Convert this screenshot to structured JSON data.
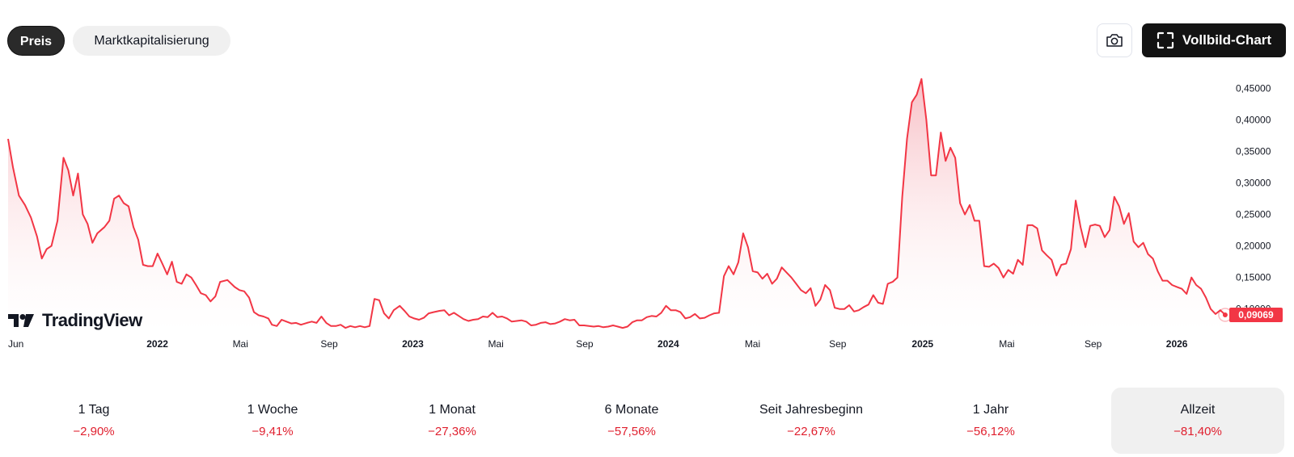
{
  "tabs": [
    {
      "label": "Preis",
      "active": true
    },
    {
      "label": "Marktkapitalisierung",
      "active": false
    }
  ],
  "toolbar": {
    "camera_icon": "camera-icon",
    "fullscreen_icon": "fullscreen-icon",
    "fullscreen_label": "Vollbild-Chart"
  },
  "branding": {
    "logo_text": "TradingView"
  },
  "colors": {
    "line": "#f23645",
    "area_top": "#f7b8bf",
    "area_bottom": "#ffffff",
    "accent_dark": "#131313",
    "negative": "#e0202f"
  },
  "chart_data": {
    "type": "area",
    "title": "",
    "xlabel": "",
    "ylabel": "",
    "ylim": [
      0.065,
      0.475
    ],
    "xlim": [
      0,
      1
    ],
    "y_ticks": [
      "0,45000",
      "0,40000",
      "0,35000",
      "0,30000",
      "0,25000",
      "0,20000",
      "0,15000",
      "0,10000"
    ],
    "y_tick_values": [
      0.45,
      0.4,
      0.35,
      0.3,
      0.25,
      0.2,
      0.15,
      0.1
    ],
    "x_ticks": [
      {
        "label": "Jun",
        "t": 0.0,
        "year": false
      },
      {
        "label": "2022",
        "t": 0.125,
        "year": true
      },
      {
        "label": "Mai",
        "t": 0.193,
        "year": false
      },
      {
        "label": "Sep",
        "t": 0.266,
        "year": false
      },
      {
        "label": "2023",
        "t": 0.337,
        "year": true
      },
      {
        "label": "Mai",
        "t": 0.405,
        "year": false
      },
      {
        "label": "Sep",
        "t": 0.478,
        "year": false
      },
      {
        "label": "2024",
        "t": 0.549,
        "year": true
      },
      {
        "label": "Mai",
        "t": 0.618,
        "year": false
      },
      {
        "label": "Sep",
        "t": 0.688,
        "year": false
      },
      {
        "label": "2025",
        "t": 0.76,
        "year": true
      },
      {
        "label": "Mai",
        "t": 0.829,
        "year": false
      },
      {
        "label": "Sep",
        "t": 0.9,
        "year": false
      },
      {
        "label": "2026",
        "t": 0.971,
        "year": true
      }
    ],
    "series": [
      {
        "name": "Preis",
        "points": [
          [
            0.0,
            0.37
          ],
          [
            0.004,
            0.325
          ],
          [
            0.009,
            0.28
          ],
          [
            0.014,
            0.265
          ],
          [
            0.019,
            0.245
          ],
          [
            0.024,
            0.215
          ],
          [
            0.028,
            0.18
          ],
          [
            0.032,
            0.195
          ],
          [
            0.036,
            0.2
          ],
          [
            0.041,
            0.24
          ],
          [
            0.046,
            0.34
          ],
          [
            0.05,
            0.32
          ],
          [
            0.054,
            0.28
          ],
          [
            0.058,
            0.315
          ],
          [
            0.062,
            0.25
          ],
          [
            0.066,
            0.235
          ],
          [
            0.07,
            0.205
          ],
          [
            0.074,
            0.22
          ],
          [
            0.08,
            0.23
          ],
          [
            0.084,
            0.24
          ],
          [
            0.088,
            0.275
          ],
          [
            0.092,
            0.28
          ],
          [
            0.096,
            0.268
          ],
          [
            0.1,
            0.263
          ],
          [
            0.104,
            0.23
          ],
          [
            0.108,
            0.21
          ],
          [
            0.112,
            0.17
          ],
          [
            0.116,
            0.168
          ],
          [
            0.12,
            0.168
          ],
          [
            0.124,
            0.188
          ],
          [
            0.128,
            0.172
          ],
          [
            0.132,
            0.155
          ],
          [
            0.136,
            0.175
          ],
          [
            0.14,
            0.143
          ],
          [
            0.144,
            0.14
          ],
          [
            0.148,
            0.155
          ],
          [
            0.152,
            0.15
          ],
          [
            0.156,
            0.138
          ],
          [
            0.16,
            0.125
          ],
          [
            0.164,
            0.122
          ],
          [
            0.168,
            0.112
          ],
          [
            0.172,
            0.12
          ],
          [
            0.176,
            0.143
          ],
          [
            0.182,
            0.146
          ],
          [
            0.188,
            0.135
          ],
          [
            0.192,
            0.13
          ],
          [
            0.196,
            0.128
          ],
          [
            0.2,
            0.118
          ],
          [
            0.204,
            0.095
          ],
          [
            0.208,
            0.09
          ],
          [
            0.212,
            0.088
          ],
          [
            0.216,
            0.085
          ],
          [
            0.219,
            0.075
          ],
          [
            0.223,
            0.073
          ],
          [
            0.227,
            0.083
          ],
          [
            0.231,
            0.08
          ],
          [
            0.235,
            0.077
          ],
          [
            0.239,
            0.078
          ],
          [
            0.243,
            0.075
          ],
          [
            0.248,
            0.078
          ],
          [
            0.252,
            0.08
          ],
          [
            0.256,
            0.078
          ],
          [
            0.26,
            0.088
          ],
          [
            0.264,
            0.078
          ],
          [
            0.268,
            0.073
          ],
          [
            0.272,
            0.073
          ],
          [
            0.276,
            0.075
          ],
          [
            0.28,
            0.07
          ],
          [
            0.284,
            0.073
          ],
          [
            0.288,
            0.071
          ],
          [
            0.292,
            0.073
          ],
          [
            0.296,
            0.071
          ],
          [
            0.3,
            0.073
          ],
          [
            0.304,
            0.116
          ],
          [
            0.308,
            0.114
          ],
          [
            0.312,
            0.093
          ],
          [
            0.316,
            0.085
          ],
          [
            0.32,
            0.098
          ],
          [
            0.325,
            0.105
          ],
          [
            0.329,
            0.097
          ],
          [
            0.333,
            0.088
          ],
          [
            0.337,
            0.085
          ],
          [
            0.341,
            0.083
          ],
          [
            0.345,
            0.086
          ],
          [
            0.349,
            0.093
          ],
          [
            0.353,
            0.095
          ],
          [
            0.358,
            0.097
          ],
          [
            0.362,
            0.098
          ],
          [
            0.366,
            0.09
          ],
          [
            0.37,
            0.094
          ],
          [
            0.374,
            0.089
          ],
          [
            0.378,
            0.084
          ],
          [
            0.382,
            0.081
          ],
          [
            0.386,
            0.083
          ],
          [
            0.39,
            0.084
          ],
          [
            0.394,
            0.088
          ],
          [
            0.398,
            0.087
          ],
          [
            0.402,
            0.094
          ],
          [
            0.406,
            0.087
          ],
          [
            0.41,
            0.088
          ],
          [
            0.414,
            0.085
          ],
          [
            0.418,
            0.08
          ],
          [
            0.422,
            0.081
          ],
          [
            0.426,
            0.082
          ],
          [
            0.43,
            0.08
          ],
          [
            0.434,
            0.074
          ],
          [
            0.438,
            0.075
          ],
          [
            0.442,
            0.078
          ],
          [
            0.446,
            0.079
          ],
          [
            0.45,
            0.076
          ],
          [
            0.454,
            0.077
          ],
          [
            0.458,
            0.08
          ],
          [
            0.462,
            0.084
          ],
          [
            0.466,
            0.082
          ],
          [
            0.47,
            0.083
          ],
          [
            0.474,
            0.074
          ],
          [
            0.478,
            0.074
          ],
          [
            0.482,
            0.073
          ],
          [
            0.486,
            0.072
          ],
          [
            0.49,
            0.073
          ],
          [
            0.494,
            0.071
          ],
          [
            0.498,
            0.072
          ],
          [
            0.502,
            0.074
          ],
          [
            0.506,
            0.072
          ],
          [
            0.51,
            0.07
          ],
          [
            0.514,
            0.072
          ],
          [
            0.518,
            0.079
          ],
          [
            0.522,
            0.082
          ],
          [
            0.526,
            0.082
          ],
          [
            0.53,
            0.087
          ],
          [
            0.534,
            0.089
          ],
          [
            0.538,
            0.088
          ],
          [
            0.542,
            0.094
          ],
          [
            0.546,
            0.105
          ],
          [
            0.55,
            0.098
          ],
          [
            0.554,
            0.098
          ],
          [
            0.558,
            0.095
          ],
          [
            0.562,
            0.085
          ],
          [
            0.566,
            0.087
          ],
          [
            0.57,
            0.092
          ],
          [
            0.574,
            0.085
          ],
          [
            0.578,
            0.086
          ],
          [
            0.582,
            0.09
          ],
          [
            0.586,
            0.093
          ],
          [
            0.59,
            0.094
          ],
          [
            0.594,
            0.152
          ],
          [
            0.598,
            0.168
          ],
          [
            0.602,
            0.155
          ],
          [
            0.606,
            0.174
          ],
          [
            0.61,
            0.22
          ],
          [
            0.614,
            0.198
          ],
          [
            0.618,
            0.16
          ],
          [
            0.622,
            0.158
          ],
          [
            0.626,
            0.148
          ],
          [
            0.63,
            0.156
          ],
          [
            0.634,
            0.14
          ],
          [
            0.638,
            0.148
          ],
          [
            0.642,
            0.166
          ],
          [
            0.646,
            0.158
          ],
          [
            0.65,
            0.15
          ],
          [
            0.654,
            0.14
          ],
          [
            0.658,
            0.13
          ],
          [
            0.662,
            0.125
          ],
          [
            0.666,
            0.133
          ],
          [
            0.67,
            0.105
          ],
          [
            0.674,
            0.115
          ],
          [
            0.678,
            0.138
          ],
          [
            0.682,
            0.13
          ],
          [
            0.686,
            0.102
          ],
          [
            0.69,
            0.1
          ],
          [
            0.694,
            0.1
          ],
          [
            0.698,
            0.106
          ],
          [
            0.702,
            0.096
          ],
          [
            0.706,
            0.098
          ],
          [
            0.71,
            0.103
          ],
          [
            0.714,
            0.107
          ],
          [
            0.718,
            0.122
          ],
          [
            0.722,
            0.11
          ],
          [
            0.726,
            0.108
          ],
          [
            0.73,
            0.14
          ],
          [
            0.734,
            0.143
          ],
          [
            0.738,
            0.15
          ],
          [
            0.742,
            0.278
          ],
          [
            0.746,
            0.37
          ],
          [
            0.75,
            0.428
          ],
          [
            0.754,
            0.44
          ],
          [
            0.758,
            0.465
          ],
          [
            0.762,
            0.4
          ],
          [
            0.766,
            0.312
          ],
          [
            0.77,
            0.312
          ],
          [
            0.774,
            0.38
          ],
          [
            0.778,
            0.335
          ],
          [
            0.782,
            0.356
          ],
          [
            0.786,
            0.34
          ],
          [
            0.79,
            0.268
          ],
          [
            0.794,
            0.25
          ],
          [
            0.798,
            0.265
          ],
          [
            0.802,
            0.24
          ],
          [
            0.806,
            0.24
          ],
          [
            0.81,
            0.168
          ],
          [
            0.814,
            0.167
          ],
          [
            0.818,
            0.172
          ],
          [
            0.822,
            0.165
          ],
          [
            0.826,
            0.15
          ],
          [
            0.83,
            0.162
          ],
          [
            0.834,
            0.156
          ],
          [
            0.838,
            0.178
          ],
          [
            0.842,
            0.17
          ],
          [
            0.846,
            0.233
          ],
          [
            0.85,
            0.233
          ],
          [
            0.854,
            0.228
          ],
          [
            0.858,
            0.193
          ],
          [
            0.862,
            0.185
          ],
          [
            0.866,
            0.178
          ],
          [
            0.87,
            0.153
          ],
          [
            0.874,
            0.17
          ],
          [
            0.878,
            0.172
          ],
          [
            0.882,
            0.195
          ],
          [
            0.886,
            0.272
          ],
          [
            0.89,
            0.23
          ],
          [
            0.894,
            0.198
          ],
          [
            0.898,
            0.232
          ],
          [
            0.902,
            0.234
          ],
          [
            0.906,
            0.232
          ],
          [
            0.91,
            0.214
          ],
          [
            0.914,
            0.225
          ],
          [
            0.918,
            0.278
          ],
          [
            0.922,
            0.263
          ],
          [
            0.926,
            0.235
          ],
          [
            0.93,
            0.252
          ],
          [
            0.934,
            0.207
          ],
          [
            0.938,
            0.198
          ],
          [
            0.942,
            0.205
          ],
          [
            0.946,
            0.187
          ],
          [
            0.95,
            0.18
          ],
          [
            0.954,
            0.16
          ],
          [
            0.958,
            0.145
          ],
          [
            0.962,
            0.145
          ],
          [
            0.966,
            0.138
          ],
          [
            0.97,
            0.135
          ],
          [
            0.974,
            0.132
          ],
          [
            0.978,
            0.124
          ],
          [
            0.982,
            0.15
          ],
          [
            0.986,
            0.138
          ],
          [
            0.99,
            0.132
          ],
          [
            0.994,
            0.118
          ],
          [
            0.998,
            0.1
          ],
          [
            1.002,
            0.092
          ],
          [
            1.006,
            0.098
          ],
          [
            1.01,
            0.0907
          ]
        ]
      }
    ],
    "last_value_label": "0,09069"
  },
  "stats": [
    {
      "label": "1 Tag",
      "value": "−2,90%",
      "active": false
    },
    {
      "label": "1 Woche",
      "value": "−9,41%",
      "active": false
    },
    {
      "label": "1 Monat",
      "value": "−27,36%",
      "active": false
    },
    {
      "label": "6 Monate",
      "value": "−57,56%",
      "active": false
    },
    {
      "label": "Seit Jahresbeginn",
      "value": "−22,67%",
      "active": false
    },
    {
      "label": "1 Jahr",
      "value": "−56,12%",
      "active": false
    },
    {
      "label": "Allzeit",
      "value": "−81,40%",
      "active": true
    }
  ]
}
